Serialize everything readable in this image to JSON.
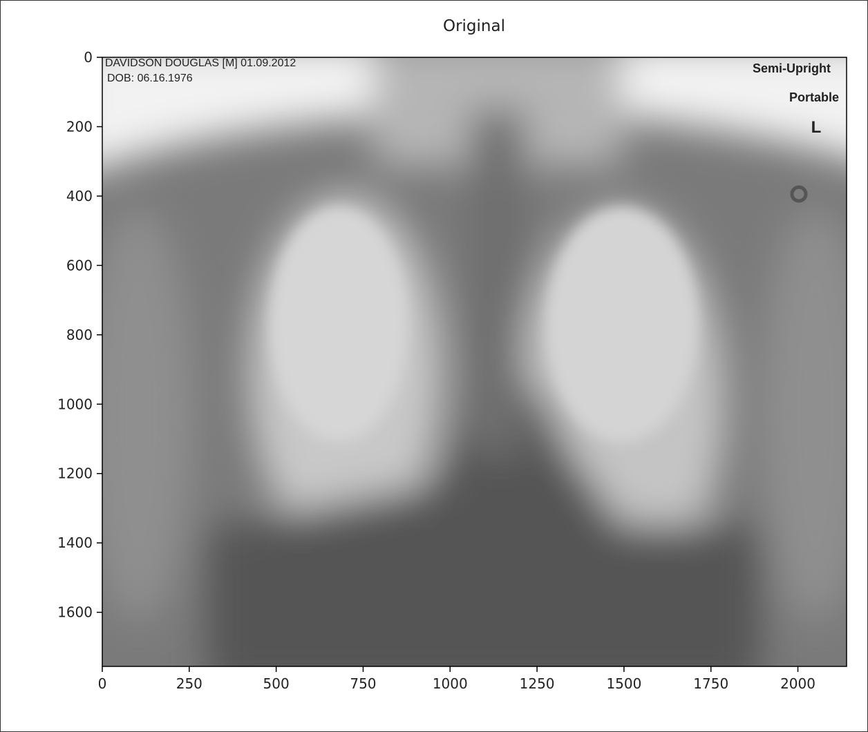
{
  "chart_data": {
    "type": "image",
    "title": "Original",
    "annotations": [
      "DAVIDSON DOUGLAS [M] 01.09.2012",
      "DOB: 06.16.1976",
      "Semi-Upright",
      "Portable",
      "L"
    ],
    "xlim": [
      0,
      2140
    ],
    "ylim": [
      1756,
      0
    ],
    "xticks": [
      0,
      250,
      500,
      750,
      1000,
      1250,
      1500,
      1750,
      2000
    ],
    "yticks": [
      0,
      200,
      400,
      600,
      800,
      1000,
      1200,
      1400,
      1600
    ]
  }
}
